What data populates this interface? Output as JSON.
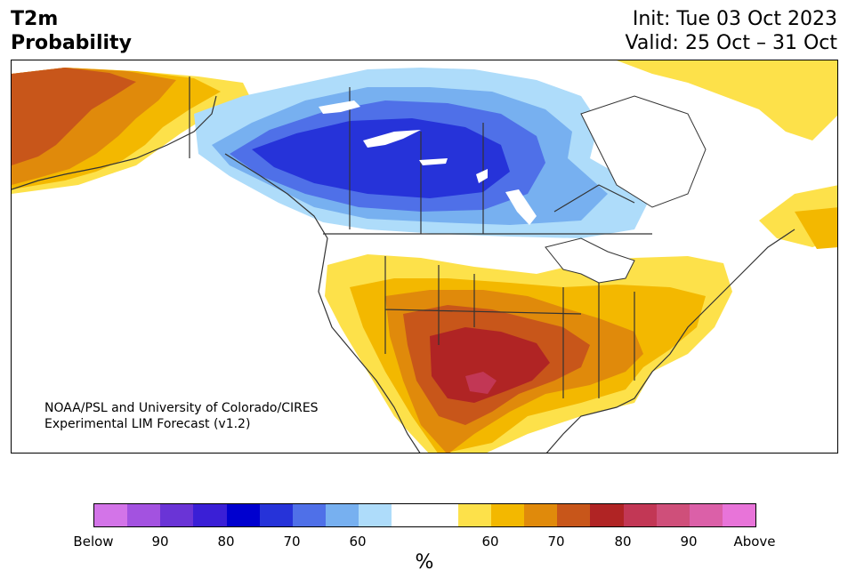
{
  "title": {
    "line1": "T2m",
    "line2": "Probability"
  },
  "run": {
    "init": "Init: Tue 03 Oct 2023",
    "valid": "Valid: 25 Oct – 31 Oct"
  },
  "credit": {
    "line1": "NOAA/PSL and University of Colorado/CIRES",
    "line2": "Experimental LIM Forecast (v1.2)"
  },
  "colorbar": {
    "colors": [
      "#d374e8",
      "#a352e0",
      "#6a34d6",
      "#3a1fd6",
      "#0000cf",
      "#2633d9",
      "#4f70e8",
      "#77b0f0",
      "#aedcfa",
      "#ffffff",
      "#ffffff",
      "#fde14a",
      "#f3b800",
      "#e08a0b",
      "#c8561a",
      "#b02424",
      "#c23755",
      "#cf4f7a",
      "#db60a8",
      "#e874d9"
    ],
    "labels": [
      "Below",
      "90",
      "80",
      "70",
      "60",
      "60",
      "70",
      "80",
      "90",
      "Above"
    ],
    "unit": "%"
  },
  "map": {
    "regions": [
      {
        "name": "Alaska",
        "category": "Above",
        "color": "#c8561a"
      },
      {
        "name": "Western Canada",
        "category": "Below",
        "color": "#2633d9"
      },
      {
        "name": "Central US",
        "category": "Above",
        "color": "#f3b800"
      },
      {
        "name": "Texas",
        "category": "Above",
        "color": "#b02424"
      },
      {
        "name": "Eastern Canada",
        "category": "Above",
        "color": "#fde14a"
      }
    ]
  }
}
